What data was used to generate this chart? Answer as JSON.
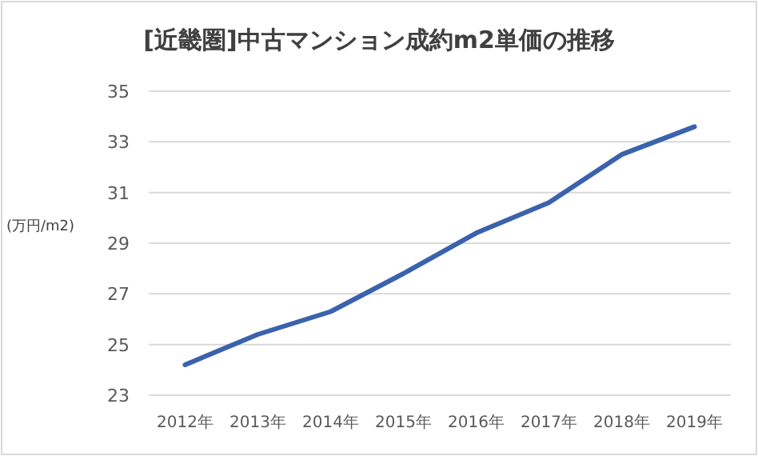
{
  "chart_data": {
    "type": "line",
    "title": "[近畿圏]中古マンション成約m2単価の推移",
    "ylabel": "(万円/m2)",
    "categories": [
      "2012年",
      "2013年",
      "2014年",
      "2015年",
      "2016年",
      "2017年",
      "2018年",
      "2019年"
    ],
    "series": [
      {
        "color": "#3a62ad",
        "values": [
          24.2,
          25.4,
          26.3,
          27.8,
          29.4,
          30.6,
          32.5,
          33.6
        ]
      }
    ],
    "ylim": [
      23,
      35
    ],
    "yticks": [
      23,
      25,
      27,
      29,
      31,
      33,
      35
    ],
    "grid": "y",
    "marker": "none",
    "line_style": "solid"
  }
}
